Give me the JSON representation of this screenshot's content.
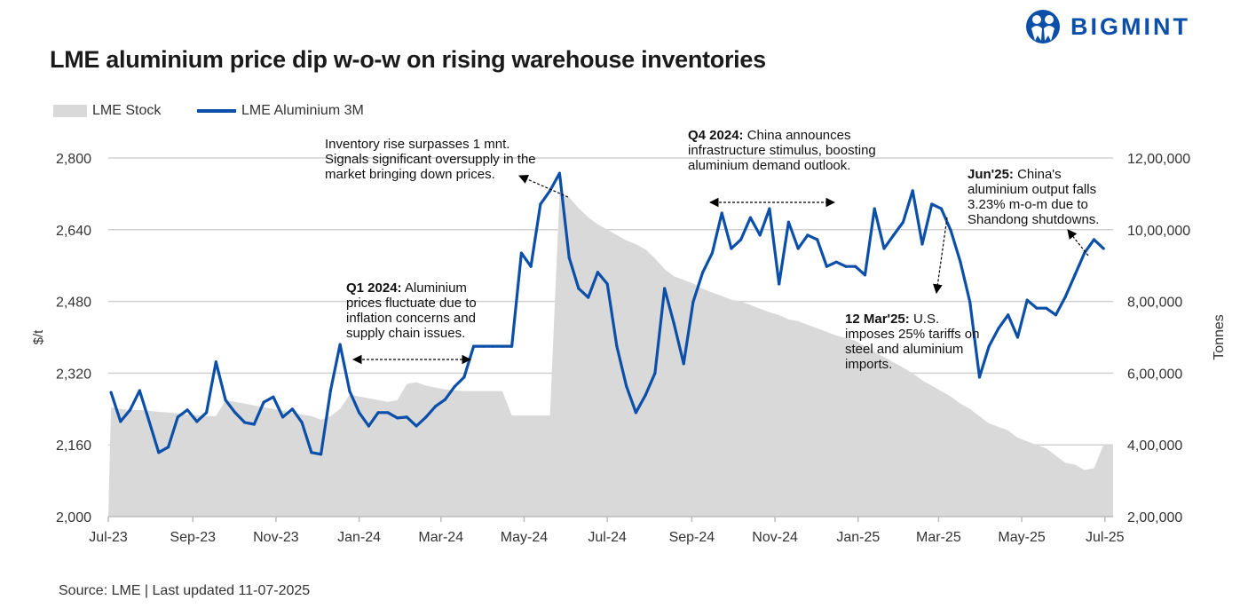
{
  "header": {
    "title": "LME aluminium price dip w-o-w on rising warehouse inventories",
    "logo_text": "BIGMINT"
  },
  "footer": {
    "source": "Source: LME | Last updated 11-07-2025"
  },
  "colors": {
    "price_line": "#0b4fa8",
    "stock_area": "#d9d9d9",
    "grid": "#d0d0d0"
  },
  "annotations": [
    {
      "bold": "",
      "text": "Inventory rise surpasses 1 mnt. Signals significant oversupply in the market bringing down prices."
    },
    {
      "bold": "Q1 2024:",
      "text": " Aluminium prices fluctuate due to inflation concerns and supply chain issues."
    },
    {
      "bold": "Q4 2024:",
      "text": " China announces infrastructure stimulus, boosting aluminium demand outlook."
    },
    {
      "bold": "Jun'25:",
      "text": " China's aluminium output falls 3.23% m-o-m due to Shandong shutdowns."
    },
    {
      "bold": "12 Mar'25:",
      "text": " U.S. imposes 25% tariffs on steel and aluminium imports."
    }
  ],
  "chart_data": {
    "type": "line+area",
    "title": "LME aluminium price dip w-o-w on rising warehouse inventories",
    "xlabel": "",
    "ylabel_left": "$/t",
    "ylabel_right": "Tonnes",
    "xlim": [
      "2023-07-01",
      "2025-07-07"
    ],
    "ylim_left": [
      2000,
      2800
    ],
    "ylim_right": [
      200000,
      1200000
    ],
    "grid": true,
    "legend_placement": "top-left",
    "x_ticks": [
      {
        "date": "2023-07-01",
        "label": "Jul-23"
      },
      {
        "date": "2023-09-01",
        "label": "Sep-23"
      },
      {
        "date": "2023-11-01",
        "label": "Nov-23"
      },
      {
        "date": "2024-01-01",
        "label": "Jan-24"
      },
      {
        "date": "2024-03-01",
        "label": "Mar-24"
      },
      {
        "date": "2024-05-01",
        "label": "May-24"
      },
      {
        "date": "2024-07-01",
        "label": "Jul-24"
      },
      {
        "date": "2024-09-01",
        "label": "Sep-24"
      },
      {
        "date": "2024-11-01",
        "label": "Nov-24"
      },
      {
        "date": "2025-01-01",
        "label": "Jan-25"
      },
      {
        "date": "2025-03-01",
        "label": "Mar-25"
      },
      {
        "date": "2025-05-01",
        "label": "May-25"
      },
      {
        "date": "2025-07-01",
        "label": "Jul-25"
      }
    ],
    "y_ticks_left": [
      {
        "v": 2000,
        "label": "2,000"
      },
      {
        "v": 2160,
        "label": "2,160"
      },
      {
        "v": 2320,
        "label": "2,320"
      },
      {
        "v": 2480,
        "label": "2,480"
      },
      {
        "v": 2640,
        "label": "2,640"
      },
      {
        "v": 2800,
        "label": "2,800"
      }
    ],
    "y_ticks_right": [
      {
        "v": 200000,
        "label": "2,00,000"
      },
      {
        "v": 400000,
        "label": "4,00,000"
      },
      {
        "v": 600000,
        "label": "6,00,000"
      },
      {
        "v": 800000,
        "label": "8,00,000"
      },
      {
        "v": 1000000,
        "label": "10,00,000"
      },
      {
        "v": 1200000,
        "label": "12,00,000"
      }
    ],
    "dates": [
      "2023-07-03",
      "2023-07-10",
      "2023-07-17",
      "2023-07-24",
      "2023-07-31",
      "2023-08-07",
      "2023-08-14",
      "2023-08-21",
      "2023-08-28",
      "2023-09-04",
      "2023-09-11",
      "2023-09-18",
      "2023-09-25",
      "2023-10-02",
      "2023-10-09",
      "2023-10-16",
      "2023-10-23",
      "2023-10-30",
      "2023-11-06",
      "2023-11-13",
      "2023-11-20",
      "2023-11-27",
      "2023-12-04",
      "2023-12-11",
      "2023-12-18",
      "2023-12-25",
      "2024-01-01",
      "2024-01-08",
      "2024-01-15",
      "2024-01-22",
      "2024-01-29",
      "2024-02-05",
      "2024-02-12",
      "2024-02-19",
      "2024-02-26",
      "2024-03-04",
      "2024-03-11",
      "2024-03-18",
      "2024-03-25",
      "2024-04-01",
      "2024-04-08",
      "2024-04-15",
      "2024-04-22",
      "2024-04-29",
      "2024-05-06",
      "2024-05-13",
      "2024-05-20",
      "2024-05-27",
      "2024-06-03",
      "2024-06-10",
      "2024-06-17",
      "2024-06-24",
      "2024-07-01",
      "2024-07-08",
      "2024-07-15",
      "2024-07-22",
      "2024-07-29",
      "2024-08-05",
      "2024-08-12",
      "2024-08-19",
      "2024-08-26",
      "2024-09-02",
      "2024-09-09",
      "2024-09-16",
      "2024-09-23",
      "2024-09-30",
      "2024-10-07",
      "2024-10-14",
      "2024-10-21",
      "2024-10-28",
      "2024-11-04",
      "2024-11-11",
      "2024-11-18",
      "2024-11-25",
      "2024-12-02",
      "2024-12-09",
      "2024-12-16",
      "2024-12-23",
      "2024-12-30",
      "2025-01-06",
      "2025-01-13",
      "2025-01-20",
      "2025-01-27",
      "2025-02-03",
      "2025-02-10",
      "2025-02-17",
      "2025-02-24",
      "2025-03-03",
      "2025-03-10",
      "2025-03-17",
      "2025-03-24",
      "2025-03-31",
      "2025-04-07",
      "2025-04-14",
      "2025-04-21",
      "2025-04-28",
      "2025-05-05",
      "2025-05-12",
      "2025-05-19",
      "2025-05-26",
      "2025-06-02",
      "2025-06-09",
      "2025-06-16",
      "2025-06-23",
      "2025-06-30"
    ],
    "series": [
      {
        "name": "LME Aluminium 3M",
        "axis": "left",
        "kind": "line",
        "values": [
          2277,
          2212,
          2238,
          2281,
          2212,
          2143,
          2155,
          2222,
          2238,
          2212,
          2232,
          2345,
          2260,
          2232,
          2210,
          2206,
          2255,
          2267,
          2222,
          2240,
          2210,
          2143,
          2139,
          2281,
          2384,
          2280,
          2232,
          2202,
          2232,
          2232,
          2220,
          2222,
          2202,
          2222,
          2246,
          2261,
          2290,
          2311,
          2380,
          2380,
          2380,
          2380,
          2380,
          2588,
          2558,
          2697,
          2727,
          2766,
          2578,
          2509,
          2489,
          2545,
          2519,
          2380,
          2291,
          2232,
          2271,
          2320,
          2509,
          2430,
          2341,
          2479,
          2545,
          2588,
          2677,
          2598,
          2618,
          2667,
          2628,
          2687,
          2519,
          2657,
          2598,
          2628,
          2618,
          2558,
          2568,
          2558,
          2558,
          2539,
          2687,
          2598,
          2628,
          2657,
          2727,
          2608,
          2697,
          2687,
          2638,
          2568,
          2479,
          2311,
          2380,
          2420,
          2450,
          2400,
          2483,
          2465,
          2465,
          2450,
          2490,
          2539,
          2588,
          2618,
          2598
        ]
      },
      {
        "name": "LME Stock",
        "axis": "right",
        "kind": "area",
        "values": [
          505000,
          500000,
          497000,
          497000,
          495000,
          492000,
          490000,
          488000,
          485000,
          483000,
          480000,
          480000,
          525000,
          520000,
          515000,
          510000,
          505000,
          500000,
          495000,
          490000,
          485000,
          480000,
          470000,
          480000,
          500000,
          540000,
          535000,
          530000,
          525000,
          520000,
          525000,
          570000,
          575000,
          565000,
          560000,
          555000,
          552000,
          550000,
          550000,
          550000,
          550000,
          550000,
          482000,
          482000,
          482000,
          482000,
          482000,
          1100000,
          1090000,
          1060000,
          1035000,
          1015000,
          1000000,
          985000,
          970000,
          960000,
          945000,
          920000,
          890000,
          870000,
          860000,
          850000,
          835000,
          825000,
          815000,
          805000,
          800000,
          790000,
          780000,
          770000,
          762000,
          750000,
          745000,
          735000,
          725000,
          715000,
          705000,
          698000,
          690000,
          675000,
          660000,
          645000,
          630000,
          615000,
          600000,
          580000,
          565000,
          550000,
          535000,
          515000,
          500000,
          480000,
          460000,
          450000,
          440000,
          420000,
          410000,
          400000,
          390000,
          370000,
          350000,
          345000,
          330000,
          335000,
          400000
        ]
      }
    ]
  }
}
